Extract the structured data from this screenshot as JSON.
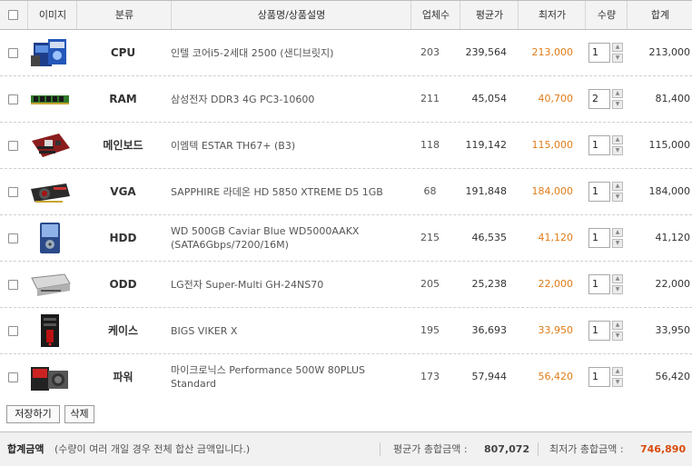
{
  "header": {
    "image": "이미지",
    "category": "분류",
    "product": "상품명/상품설명",
    "sellers": "업체수",
    "avg_price": "평균가",
    "low_price": "최저가",
    "quantity": "수량",
    "total": "합계"
  },
  "rows": [
    {
      "category": "CPU",
      "name": "인텔 코어i5-2세대 2500 (샌디브릿지)",
      "sellers": "203",
      "avg": "239,564",
      "low": "213,000",
      "qty": "1",
      "total": "213,000",
      "icon": "cpu-box-icon"
    },
    {
      "category": "RAM",
      "name": "삼성전자 DDR3 4G PC3-10600",
      "sellers": "211",
      "avg": "45,054",
      "low": "40,700",
      "qty": "2",
      "total": "81,400",
      "icon": "ram-stick-icon"
    },
    {
      "category": "메인보드",
      "name": "이엠텍 ESTAR TH67+ (B3)",
      "sellers": "118",
      "avg": "119,142",
      "low": "115,000",
      "qty": "1",
      "total": "115,000",
      "icon": "motherboard-icon"
    },
    {
      "category": "VGA",
      "name": "SAPPHIRE 라데온 HD 5850 XTREME D5 1GB",
      "sellers": "68",
      "avg": "191,848",
      "low": "184,000",
      "qty": "1",
      "total": "184,000",
      "icon": "graphics-card-icon"
    },
    {
      "category": "HDD",
      "name": "WD 500GB Caviar Blue WD5000AAKX (SATA6Gbps/7200/16M)",
      "sellers": "215",
      "avg": "46,535",
      "low": "41,120",
      "qty": "1",
      "total": "41,120",
      "icon": "hard-drive-icon"
    },
    {
      "category": "ODD",
      "name": "LG전자 Super-Multi GH-24NS70",
      "sellers": "205",
      "avg": "25,238",
      "low": "22,000",
      "qty": "1",
      "total": "22,000",
      "icon": "optical-drive-icon"
    },
    {
      "category": "케이스",
      "name": "BIGS VIKER X",
      "sellers": "195",
      "avg": "36,693",
      "low": "33,950",
      "qty": "1",
      "total": "33,950",
      "icon": "pc-case-icon"
    },
    {
      "category": "파워",
      "name": "마이크로닉스 Performance 500W 80PLUS Standard",
      "sellers": "173",
      "avg": "57,944",
      "low": "56,420",
      "qty": "1",
      "total": "56,420",
      "icon": "power-supply-icon"
    }
  ],
  "buttons": {
    "save": "저장하기",
    "delete": "삭제"
  },
  "footer": {
    "total_label": "합계금액",
    "total_note": "(수량이 여러 개일 경우 전체 합산 금액입니다.)",
    "avg_total_label": "평균가 총합금액 :",
    "avg_total_value": "807,072",
    "low_total_label": "최저가 총합금액 :",
    "low_total_value": "746,890"
  },
  "colors": {
    "accent": "#e07c17",
    "footer_value": "#d94b0b"
  }
}
